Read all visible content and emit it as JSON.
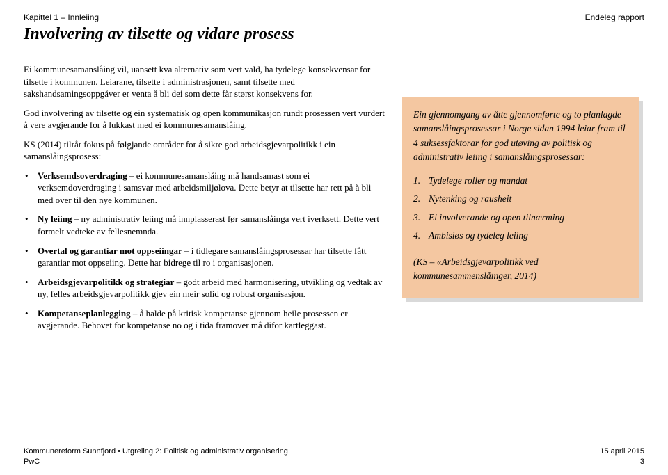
{
  "header": {
    "left": "Kapittel 1 – Innleiing",
    "right": "Endeleg rapport"
  },
  "title": "Involvering av tilsette og vidare prosess",
  "left": {
    "p1": "Ei kommunesamanslåing vil, uansett kva alternativ som vert vald, ha tydelege konsekvensar for tilsette i kommunen. Leiarane, tilsette i administrasjonen, samt tilsette med sakshandsamingsoppgåver er venta å bli dei som dette får størst konsekvens for.",
    "p2": "God involvering av tilsette og ein systematisk og open kommunikasjon rundt prosessen vert vurdert å vere avgjerande for å lukkast med ei kommunesamanslåing.",
    "p3": "KS (2014) tilrår fokus på følgjande områder for å sikre god arbeidsgjevarpolitikk i ein samanslåingsprosess:",
    "items": [
      {
        "bold": "Verksemdsoverdraging",
        "text": " – ei kommunesamanslåing må handsamast som ei verksemdoverdraging i samsvar med arbeidsmiljølova. Dette betyr at tilsette har rett på å bli med over til den nye kommunen."
      },
      {
        "bold": "Ny leiing",
        "text": " – ny administrativ leiing må innplasserast før samanslåinga vert iverksett. Dette vert formelt vedteke av fellesnemnda."
      },
      {
        "bold": "Overtal og garantiar mot oppseiingar",
        "text": " – i tidlegare samanslåingsprosessar har tilsette fått garantiar mot oppseiing. Dette har bidrege til ro i organisasjonen."
      },
      {
        "bold": "Arbeidsgjevarpolitikk og strategiar",
        "text": " – godt arbeid med harmonisering, utvikling og vedtak av ny, felles arbeidsgjevarpolitikk gjev ein meir solid og robust organisasjon."
      },
      {
        "bold": "Kompetanseplanlegging",
        "text": " – å halde på kritisk kompetanse gjennom heile prosessen er avgjerande. Behovet for kompetanse no og i tida framover må difor kartleggast."
      }
    ]
  },
  "sidebox": {
    "background_color": "#f4c7a1",
    "shadow_color": "#d9d9d9",
    "intro": "Ein gjennomgang av åtte gjennomførte og to planlagde samanslåingsprosessar i Norge sidan 1994 leiar fram til 4 suksessfaktorar for god utøving av politisk og administrativ leiing i samanslåingsprosessar:",
    "points": [
      "Tydelege roller og mandat",
      "Nytenking og rausheit",
      "Ei involverande og open tilnærming",
      "Ambisiøs og tydeleg leiing"
    ],
    "ref": "(KS – «Arbeidsgjevarpolitikk ved kommunesammenslåinger, 2014)"
  },
  "footer": {
    "left_line1": "Kommunereform Sunnfjord • Utgreiing 2: Politisk og administrativ organisering",
    "left_line2": "PwC",
    "right_line1": "15 april 2015",
    "right_line2": "3"
  }
}
